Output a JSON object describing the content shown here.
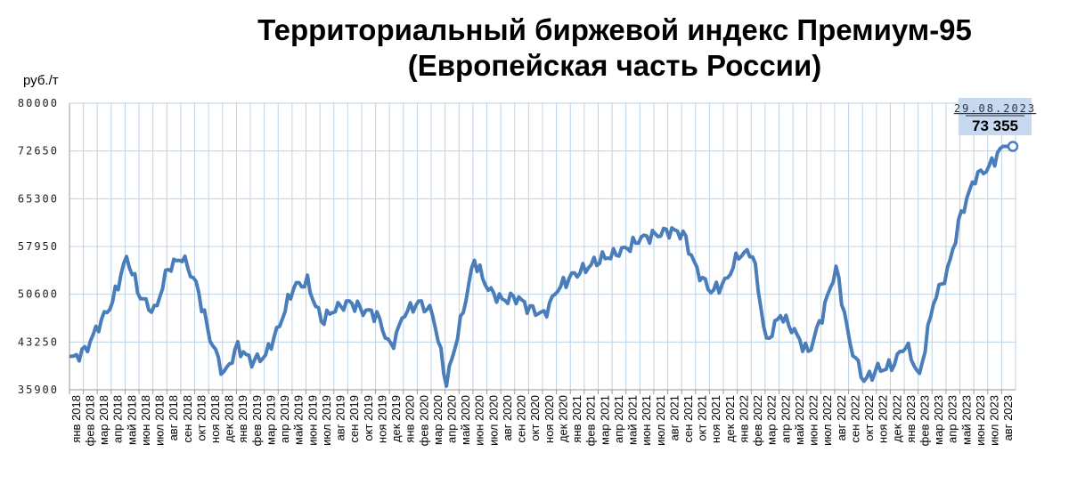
{
  "chart_data": {
    "type": "line",
    "title_lines": [
      "Территориальный биржевой индекс Премиум-95",
      "(Европейская часть России)"
    ],
    "ylabel": "руб./т",
    "ylim": [
      35900,
      80000
    ],
    "yticks": [
      "80000",
      "72650",
      "65300",
      "57950",
      "50600",
      "43250",
      "35900"
    ],
    "grid": true,
    "categories": [
      "янв 2018",
      "фев 2018",
      "мар 2018",
      "апр 2018",
      "май 2018",
      "июн 2018",
      "июл 2018",
      "авг 2018",
      "сен 2018",
      "окт 2018",
      "ноя 2018",
      "дек 2018",
      "янв 2019",
      "фев 2019",
      "мар 2019",
      "апр 2019",
      "май 2019",
      "июн 2019",
      "июл 2019",
      "авг 2019",
      "сен 2019",
      "окт 2019",
      "ноя 2019",
      "дек 2019",
      "янв 2020",
      "фев 2020",
      "мар 2020",
      "апр 2020",
      "май 2020",
      "июн 2020",
      "июл 2020",
      "авг 2020",
      "сен 2020",
      "окт 2020",
      "ноя 2020",
      "дек 2020",
      "янв 2021",
      "фев 2021",
      "мар 2021",
      "апр 2021",
      "май 2021",
      "июн 2021",
      "июл 2021",
      "авг 2021",
      "сен 2021",
      "окт 2021",
      "ноя 2021",
      "дек 2021",
      "янв 2022",
      "фев 2022",
      "мар 2022",
      "апр 2022",
      "май 2022",
      "июн 2022",
      "июл 2022",
      "авг 2022",
      "сен 2022",
      "окт 2022",
      "ноя 2022",
      "дек 2022",
      "янв 2023",
      "фев 2023",
      "мар 2023",
      "апр 2023",
      "май 2023",
      "июн 2023",
      "июл 2023",
      "авг 2023"
    ],
    "series": [
      {
        "values": [
          40600,
          41800,
          45800,
          49500,
          56400,
          50200,
          47800,
          54600,
          56300,
          52300,
          44000,
          38200,
          42500,
          40200,
          41200,
          45900,
          51800,
          52400,
          46500,
          48300,
          49400,
          48200,
          47400,
          42300,
          47700,
          49300,
          47800,
          37000,
          46200,
          55900,
          51300,
          49700,
          50200,
          48400,
          47400,
          51400,
          53400,
          54600,
          56000,
          56700,
          57700,
          59200,
          59700,
          60400,
          60000,
          54300,
          51000,
          52300,
          56700,
          57000,
          43200,
          47500,
          44800,
          41500,
          47300,
          54700,
          43000,
          37300,
          39000,
          39500,
          42900,
          38000,
          49500,
          54000,
          63000,
          68600,
          70200,
          73355
        ],
        "color": "#4a7ebb"
      }
    ],
    "annotation": {
      "date": "29.08.2023",
      "value": "73 355"
    }
  }
}
